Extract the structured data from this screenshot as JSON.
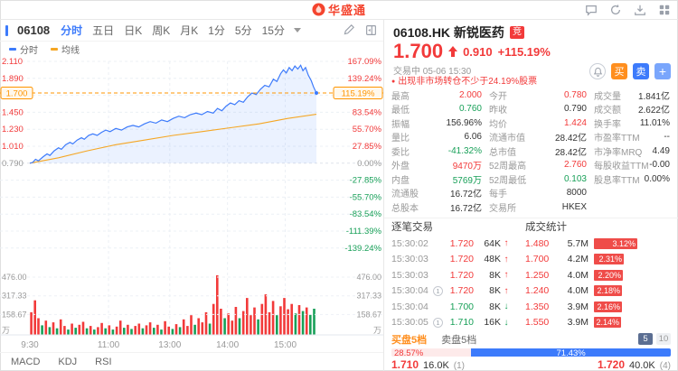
{
  "colors": {
    "up": "#f23a3a",
    "down": "#18a058",
    "accent": "#3d7bfb",
    "orange": "#ff8f1f",
    "avg_line": "#f5a623",
    "price_line": "#3d7bfb"
  },
  "topbar": {
    "logo_text": "华盛通"
  },
  "toolbar": {
    "code": "06108",
    "periods": [
      "分时",
      "五日",
      "日K",
      "周K",
      "月K",
      "1分",
      "5分",
      "15分"
    ],
    "active_period": "分时"
  },
  "legend": {
    "items": [
      {
        "label": "分时",
        "color": "#3d7bfb"
      },
      {
        "label": "均线",
        "color": "#f5a623"
      }
    ]
  },
  "chart_data": {
    "type": "line",
    "title": "06108.HK 分时图",
    "prev_close": 0.79,
    "current_price": 1.7,
    "left_axis": [
      {
        "text": "2.110",
        "cls": "up"
      },
      {
        "text": "1.890",
        "cls": "up"
      },
      {
        "text": "1.700",
        "cls": "current"
      },
      {
        "text": "1.450",
        "cls": "up"
      },
      {
        "text": "1.230",
        "cls": "up"
      },
      {
        "text": "1.010",
        "cls": "up"
      },
      {
        "text": "0.790",
        "cls": "flat"
      }
    ],
    "right_axis": [
      {
        "text": "167.09%",
        "cls": "up"
      },
      {
        "text": "139.24%",
        "cls": "up"
      },
      {
        "text": "115.19%",
        "cls": "current"
      },
      {
        "text": "83.54%",
        "cls": "up"
      },
      {
        "text": "55.70%",
        "cls": "up"
      },
      {
        "text": "27.85%",
        "cls": "up"
      },
      {
        "text": "0.00%",
        "cls": "flat"
      },
      {
        "text": "-27.85%",
        "cls": "down"
      },
      {
        "text": "-55.70%",
        "cls": "down"
      },
      {
        "text": "-83.54%",
        "cls": "down"
      },
      {
        "text": "-111.39%",
        "cls": "down"
      },
      {
        "text": "-139.24%",
        "cls": "down"
      }
    ],
    "current_tag": {
      "price": "1.700",
      "pct": "115.19%"
    },
    "x_ticks": [
      {
        "label": "9:30",
        "f": 0
      },
      {
        "label": "11:00",
        "f": 0.225
      },
      {
        "label": "13:00",
        "f": 0.4
      },
      {
        "label": "14:00",
        "f": 0.565
      },
      {
        "label": "15:00",
        "f": 0.73
      }
    ],
    "volume_axis": [
      "476.00",
      "317.33",
      "158.67"
    ],
    "volume_unit": "万",
    "price_line": [
      [
        0,
        0.79
      ],
      [
        0.01,
        0.8
      ],
      [
        0.02,
        0.84
      ],
      [
        0.03,
        0.82
      ],
      [
        0.045,
        0.87
      ],
      [
        0.06,
        0.91
      ],
      [
        0.07,
        0.89
      ],
      [
        0.085,
        0.95
      ],
      [
        0.1,
        0.99
      ],
      [
        0.11,
        0.97
      ],
      [
        0.125,
        1.03
      ],
      [
        0.14,
        1.06
      ],
      [
        0.15,
        1.04
      ],
      [
        0.165,
        1.09
      ],
      [
        0.18,
        1.12
      ],
      [
        0.19,
        1.1
      ],
      [
        0.205,
        1.15
      ],
      [
        0.22,
        1.17
      ],
      [
        0.235,
        1.15
      ],
      [
        0.25,
        1.19
      ],
      [
        0.265,
        1.22
      ],
      [
        0.28,
        1.2
      ],
      [
        0.3,
        1.24
      ],
      [
        0.32,
        1.22
      ],
      [
        0.34,
        1.26
      ],
      [
        0.36,
        1.28
      ],
      [
        0.38,
        1.26
      ],
      [
        0.4,
        1.3
      ],
      [
        0.42,
        1.33
      ],
      [
        0.44,
        1.31
      ],
      [
        0.46,
        1.35
      ],
      [
        0.48,
        1.33
      ],
      [
        0.5,
        1.37
      ],
      [
        0.52,
        1.4
      ],
      [
        0.54,
        1.38
      ],
      [
        0.56,
        1.42
      ],
      [
        0.58,
        1.44
      ],
      [
        0.6,
        1.42
      ],
      [
        0.62,
        1.46
      ],
      [
        0.64,
        1.44
      ],
      [
        0.655,
        1.5
      ],
      [
        0.67,
        1.47
      ],
      [
        0.685,
        1.53
      ],
      [
        0.7,
        1.57
      ],
      [
        0.715,
        1.55
      ],
      [
        0.73,
        1.6
      ],
      [
        0.745,
        1.58
      ],
      [
        0.76,
        1.65
      ],
      [
        0.775,
        1.7
      ],
      [
        0.79,
        1.68
      ],
      [
        0.805,
        1.75
      ],
      [
        0.82,
        1.8
      ],
      [
        0.835,
        1.78
      ],
      [
        0.85,
        1.88
      ],
      [
        0.862,
        1.85
      ],
      [
        0.875,
        1.95
      ],
      [
        0.885,
        2.0
      ],
      [
        0.895,
        1.96
      ],
      [
        0.905,
        2.03
      ],
      [
        0.915,
        1.99
      ],
      [
        0.925,
        2.05
      ],
      [
        0.935,
        2.01
      ],
      [
        0.945,
        2.06
      ],
      [
        0.953,
        1.99
      ],
      [
        0.962,
        2.03
      ],
      [
        0.972,
        1.93
      ],
      [
        0.982,
        1.86
      ],
      [
        0.99,
        1.78
      ],
      [
        1.0,
        1.7
      ]
    ],
    "avg_line": [
      [
        0,
        0.79
      ],
      [
        0.1,
        0.86
      ],
      [
        0.2,
        0.95
      ],
      [
        0.3,
        1.03
      ],
      [
        0.4,
        1.09
      ],
      [
        0.5,
        1.15
      ],
      [
        0.6,
        1.2
      ],
      [
        0.7,
        1.25
      ],
      [
        0.8,
        1.3
      ],
      [
        0.9,
        1.37
      ],
      [
        1.0,
        1.424
      ]
    ],
    "volume": [
      [
        0.005,
        0.38,
        1
      ],
      [
        0.018,
        0.58,
        1
      ],
      [
        0.03,
        0.28,
        1
      ],
      [
        0.043,
        0.16,
        0
      ],
      [
        0.056,
        0.24,
        1
      ],
      [
        0.069,
        0.13,
        0
      ],
      [
        0.082,
        0.21,
        1
      ],
      [
        0.095,
        0.11,
        0
      ],
      [
        0.108,
        0.26,
        1
      ],
      [
        0.121,
        0.15,
        1
      ],
      [
        0.134,
        0.09,
        0
      ],
      [
        0.147,
        0.19,
        1
      ],
      [
        0.16,
        0.12,
        0
      ],
      [
        0.173,
        0.17,
        1
      ],
      [
        0.186,
        0.22,
        1
      ],
      [
        0.199,
        0.11,
        0
      ],
      [
        0.212,
        0.15,
        1
      ],
      [
        0.225,
        0.09,
        0
      ],
      [
        0.238,
        0.13,
        1
      ],
      [
        0.251,
        0.2,
        1
      ],
      [
        0.264,
        0.11,
        0
      ],
      [
        0.277,
        0.16,
        1
      ],
      [
        0.29,
        0.09,
        0
      ],
      [
        0.303,
        0.14,
        1
      ],
      [
        0.316,
        0.24,
        1
      ],
      [
        0.329,
        0.12,
        0
      ],
      [
        0.342,
        0.17,
        1
      ],
      [
        0.355,
        0.1,
        0
      ],
      [
        0.368,
        0.15,
        1
      ],
      [
        0.381,
        0.19,
        1
      ],
      [
        0.394,
        0.11,
        0
      ],
      [
        0.407,
        0.16,
        1
      ],
      [
        0.42,
        0.21,
        1
      ],
      [
        0.433,
        0.12,
        0
      ],
      [
        0.446,
        0.17,
        1
      ],
      [
        0.459,
        0.09,
        0
      ],
      [
        0.472,
        0.23,
        1
      ],
      [
        0.485,
        0.14,
        1
      ],
      [
        0.498,
        0.1,
        0
      ],
      [
        0.511,
        0.18,
        1
      ],
      [
        0.524,
        0.13,
        0
      ],
      [
        0.537,
        0.26,
        1
      ],
      [
        0.55,
        0.15,
        1
      ],
      [
        0.563,
        0.33,
        1
      ],
      [
        0.576,
        0.17,
        0
      ],
      [
        0.589,
        0.28,
        1
      ],
      [
        0.602,
        0.21,
        1
      ],
      [
        0.615,
        0.38,
        1
      ],
      [
        0.628,
        0.19,
        0
      ],
      [
        0.641,
        0.52,
        1
      ],
      [
        0.654,
        1.0,
        1
      ],
      [
        0.667,
        0.44,
        1
      ],
      [
        0.68,
        0.28,
        0
      ],
      [
        0.693,
        0.36,
        1
      ],
      [
        0.706,
        0.24,
        1
      ],
      [
        0.719,
        0.47,
        1
      ],
      [
        0.732,
        0.28,
        0
      ],
      [
        0.745,
        0.4,
        1
      ],
      [
        0.758,
        0.62,
        1
      ],
      [
        0.771,
        0.33,
        1
      ],
      [
        0.784,
        0.46,
        1
      ],
      [
        0.797,
        0.26,
        0
      ],
      [
        0.81,
        0.52,
        1
      ],
      [
        0.823,
        0.68,
        1
      ],
      [
        0.836,
        0.38,
        1
      ],
      [
        0.849,
        0.57,
        1
      ],
      [
        0.862,
        0.33,
        0
      ],
      [
        0.875,
        0.48,
        1
      ],
      [
        0.888,
        0.62,
        1
      ],
      [
        0.901,
        0.43,
        1
      ],
      [
        0.914,
        0.52,
        1
      ],
      [
        0.927,
        0.36,
        0
      ],
      [
        0.94,
        0.5,
        1
      ],
      [
        0.953,
        0.4,
        0
      ],
      [
        0.966,
        0.46,
        1
      ],
      [
        0.979,
        0.34,
        0
      ],
      [
        0.992,
        0.44,
        0
      ]
    ]
  },
  "bottom_tabs": [
    "MACD",
    "KDJ",
    "RSI"
  ],
  "quote": {
    "code_name": "06108.HK 新锐医药",
    "badge": "竞",
    "price": "1.700",
    "change": "0.910",
    "change_pct": "+115.19%",
    "status": "交易中",
    "datetime": "05-06 15:30",
    "buy_label": "买",
    "sell_label": "卖",
    "add_label": "+",
    "alert": "出现非市场转仓不少于24.19%股票",
    "grid": [
      [
        {
          "k": "最高",
          "v": "2.000",
          "c": "up"
        },
        {
          "k": "今开",
          "v": "0.780",
          "c": "up"
        },
        {
          "k": "成交量",
          "v": "1.841亿",
          "c": ""
        }
      ],
      [
        {
          "k": "最低",
          "v": "0.760",
          "c": "down"
        },
        {
          "k": "昨收",
          "v": "0.790",
          "c": ""
        },
        {
          "k": "成交额",
          "v": "2.622亿",
          "c": ""
        }
      ],
      [
        {
          "k": "振幅",
          "v": "156.96%",
          "c": ""
        },
        {
          "k": "均价",
          "v": "1.424",
          "c": "up"
        },
        {
          "k": "换手率",
          "v": "11.01%",
          "c": ""
        }
      ],
      [
        {
          "k": "量比",
          "v": "6.06",
          "c": ""
        },
        {
          "k": "流通市值",
          "v": "28.42亿",
          "c": ""
        },
        {
          "k": "市盈率TTM",
          "v": "--",
          "c": ""
        }
      ],
      [
        {
          "k": "委比",
          "v": "-41.32%",
          "c": "down"
        },
        {
          "k": "总市值",
          "v": "28.42亿",
          "c": ""
        },
        {
          "k": "市净率MRQ",
          "v": "4.49",
          "c": ""
        }
      ],
      [
        {
          "k": "外盘",
          "v": "9470万",
          "c": "up"
        },
        {
          "k": "52周最高",
          "v": "2.760",
          "c": "up"
        },
        {
          "k": "每股收益TTM",
          "v": "-0.00",
          "c": ""
        }
      ],
      [
        {
          "k": "内盘",
          "v": "5769万",
          "c": "down"
        },
        {
          "k": "52周最低",
          "v": "0.103",
          "c": "down"
        },
        {
          "k": "股息率TTM",
          "v": "0.00%",
          "c": ""
        }
      ],
      [
        {
          "k": "流通股",
          "v": "16.72亿",
          "c": ""
        },
        {
          "k": "每手",
          "v": "8000",
          "c": ""
        },
        {
          "k": "",
          "v": "",
          "c": ""
        }
      ],
      [
        {
          "k": "总股本",
          "v": "16.72亿",
          "c": ""
        },
        {
          "k": "交易所",
          "v": "HKEX",
          "c": ""
        },
        {
          "k": "",
          "v": "",
          "c": ""
        }
      ]
    ]
  },
  "ticks": {
    "title": "逐笔交易",
    "rows": [
      {
        "time": "15:30:02",
        "mark": "",
        "price": "1.720",
        "vol": "64K",
        "dir": "up"
      },
      {
        "time": "15:30:03",
        "mark": "",
        "price": "1.720",
        "vol": "48K",
        "dir": "up"
      },
      {
        "time": "15:30:03",
        "mark": "",
        "price": "1.720",
        "vol": "8K",
        "dir": "up"
      },
      {
        "time": "15:30:04",
        "mark": "1",
        "price": "1.720",
        "vol": "8K",
        "dir": "up"
      },
      {
        "time": "15:30:04",
        "mark": "",
        "price": "1.700",
        "vol": "8K",
        "dir": "down"
      },
      {
        "time": "15:30:05",
        "mark": "1",
        "price": "1.710",
        "vol": "16K",
        "dir": "down"
      }
    ]
  },
  "stats": {
    "title": "成交统计",
    "rows": [
      {
        "price": "1.480",
        "vol": "5.7M",
        "pct": "3.12%",
        "w": 48
      },
      {
        "price": "1.700",
        "vol": "4.2M",
        "pct": "2.31%",
        "w": 33
      },
      {
        "price": "1.250",
        "vol": "4.0M",
        "pct": "2.20%",
        "w": 32
      },
      {
        "price": "1.240",
        "vol": "4.0M",
        "pct": "2.18%",
        "w": 31
      },
      {
        "price": "1.350",
        "vol": "3.9M",
        "pct": "2.16%",
        "w": 31
      },
      {
        "price": "1.550",
        "vol": "3.9M",
        "pct": "2.14%",
        "w": 30
      }
    ]
  },
  "depth": {
    "buy_tab": "买盘5档",
    "sell_tab": "卖盘5档",
    "toggle5": "5",
    "toggle10": "10",
    "buy_pct": "28.57%",
    "sell_pct": "71.43%",
    "bid": {
      "price": "1.710",
      "vol": "16.0K",
      "orders": "(1)"
    },
    "ask": {
      "price": "1.720",
      "vol": "40.0K",
      "orders": "(4)"
    }
  }
}
